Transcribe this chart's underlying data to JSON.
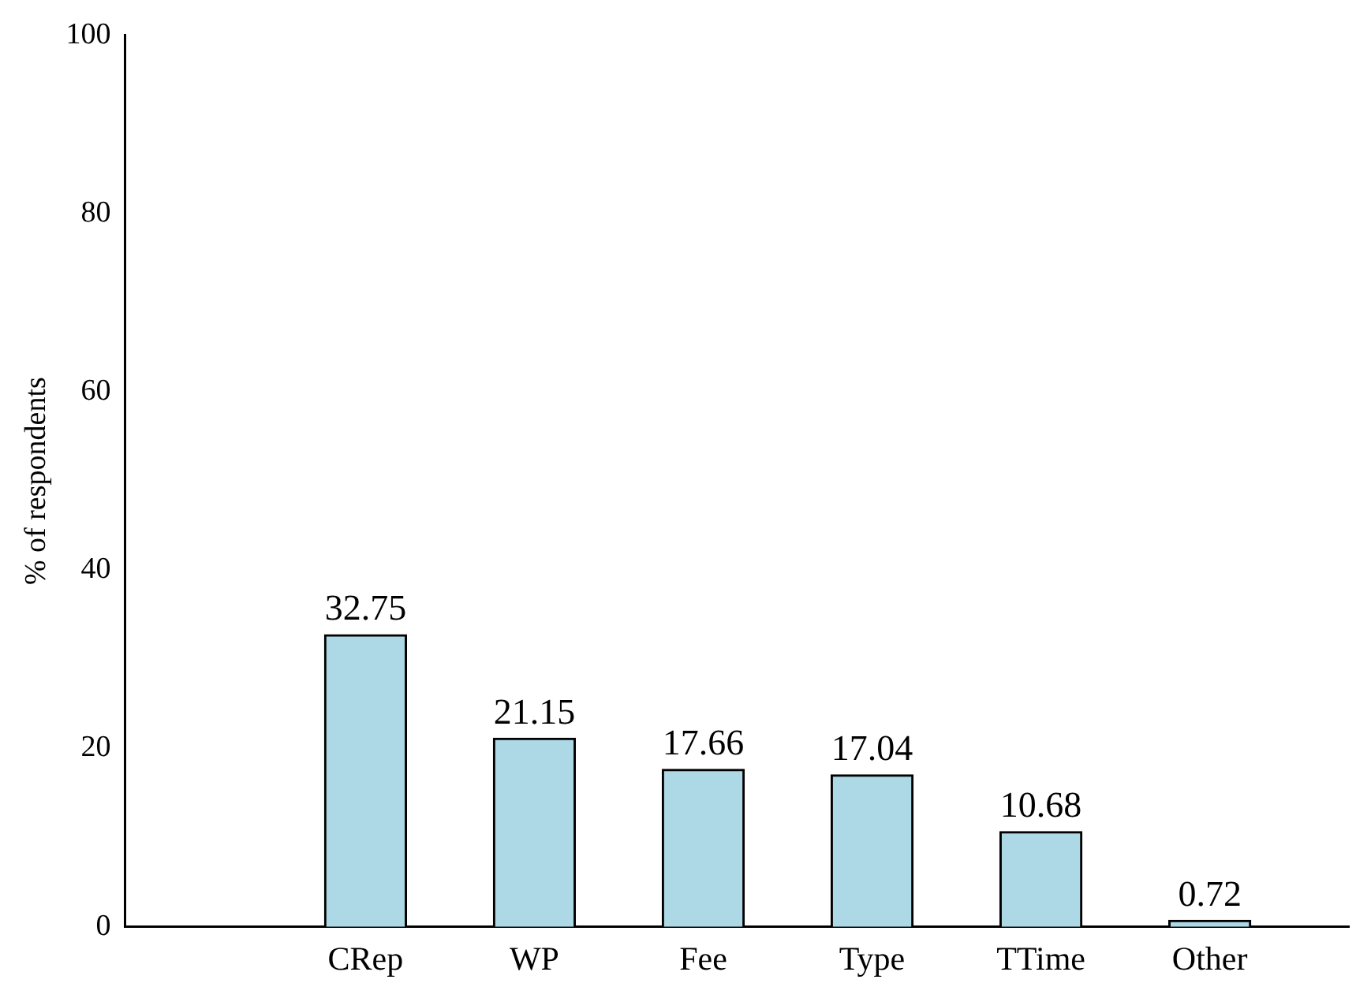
{
  "chart_data": {
    "type": "bar",
    "ylabel": "% of respondents",
    "categories": [
      "CRep",
      "WP",
      "Fee",
      "Type",
      "TTime",
      "Other"
    ],
    "values": [
      32.75,
      21.15,
      17.66,
      17.04,
      10.68,
      0.72
    ],
    "color": "#add8e6",
    "ylim": [
      0,
      100
    ],
    "yticks": [
      0,
      20,
      40,
      60,
      80,
      100
    ],
    "data_labels": true,
    "grid": false,
    "legend": false
  }
}
